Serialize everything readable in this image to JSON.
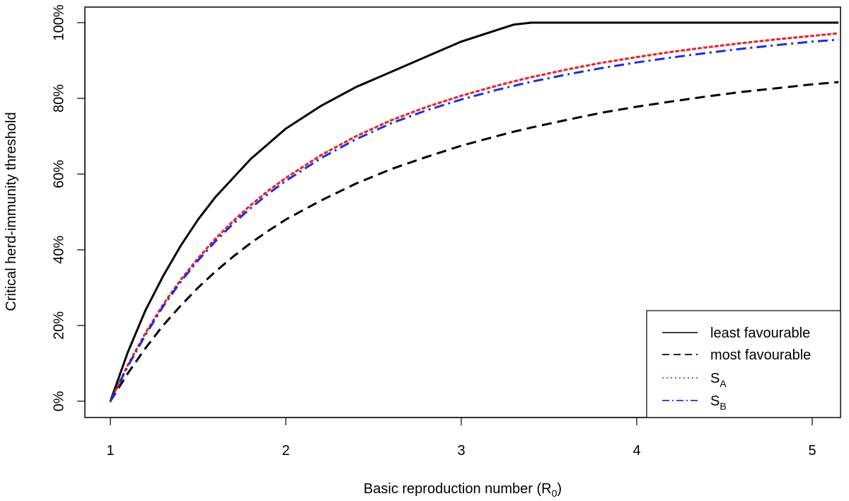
{
  "chart_data": {
    "type": "line",
    "xlabel": "Basic reproduction number (R",
    "xlabel_sub": "0",
    "xlabel_end": ")",
    "ylabel": "Critical herd-immunity threshold",
    "xlim": [
      1,
      5.15
    ],
    "ylim": [
      0,
      1
    ],
    "x_ticks": [
      1,
      2,
      3,
      4,
      5
    ],
    "x_tick_labels": [
      "1",
      "2",
      "3",
      "4",
      "5"
    ],
    "y_ticks": [
      0,
      0.2,
      0.4,
      0.6,
      0.8,
      1.0
    ],
    "y_tick_labels": [
      "0%",
      "20%",
      "40%",
      "60%",
      "80%",
      "100%"
    ],
    "grid": false,
    "legend_position": "bottom-right",
    "x": [
      1.0,
      1.1,
      1.2,
      1.3,
      1.4,
      1.5,
      1.6,
      1.7,
      1.8,
      1.9,
      2.0,
      2.2,
      2.4,
      2.6,
      2.8,
      3.0,
      3.2,
      3.3,
      3.4,
      3.6,
      3.8,
      4.0,
      4.2,
      4.4,
      4.6,
      4.8,
      5.0,
      5.15
    ],
    "series": [
      {
        "name": "least favourable",
        "color": "#000000",
        "dash": "solid",
        "values": [
          0.0,
          0.13,
          0.24,
          0.33,
          0.41,
          0.48,
          0.54,
          0.59,
          0.64,
          0.68,
          0.72,
          0.78,
          0.83,
          0.87,
          0.91,
          0.95,
          0.98,
          0.995,
          1.0,
          1.0,
          1.0,
          1.0,
          1.0,
          1.0,
          1.0,
          1.0,
          1.0,
          1.0
        ]
      },
      {
        "name": "most favourable",
        "color": "#000000",
        "dash": "dashed",
        "values": [
          0.0,
          0.074,
          0.14,
          0.2,
          0.252,
          0.3,
          0.343,
          0.382,
          0.418,
          0.45,
          0.48,
          0.53,
          0.575,
          0.613,
          0.645,
          0.675,
          0.7,
          0.712,
          0.723,
          0.743,
          0.762,
          0.778,
          0.792,
          0.805,
          0.817,
          0.827,
          0.837,
          0.843
        ]
      },
      {
        "name": "S",
        "name_sub": "A",
        "color": "#e8262d",
        "dash": "dotted",
        "values": [
          0.0,
          0.096,
          0.18,
          0.255,
          0.32,
          0.378,
          0.43,
          0.476,
          0.518,
          0.556,
          0.59,
          0.65,
          0.7,
          0.742,
          0.777,
          0.807,
          0.833,
          0.845,
          0.856,
          0.876,
          0.894,
          0.909,
          0.923,
          0.935,
          0.946,
          0.956,
          0.965,
          0.972
        ]
      },
      {
        "name": "S",
        "name_sub": "B",
        "color": "#1f2ee0",
        "dash": "dashdot",
        "values": [
          0.0,
          0.093,
          0.175,
          0.25,
          0.315,
          0.372,
          0.423,
          0.469,
          0.51,
          0.548,
          0.582,
          0.642,
          0.692,
          0.734,
          0.768,
          0.797,
          0.822,
          0.833,
          0.844,
          0.863,
          0.88,
          0.895,
          0.908,
          0.92,
          0.931,
          0.941,
          0.95,
          0.955
        ]
      }
    ]
  }
}
